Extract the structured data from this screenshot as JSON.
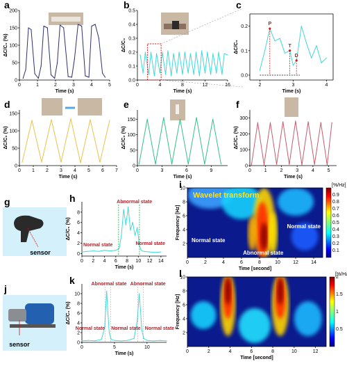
{
  "panels": {
    "a": {
      "letter": "a"
    },
    "b": {
      "letter": "b"
    },
    "c": {
      "letter": "c"
    },
    "d": {
      "letter": "d"
    },
    "e": {
      "letter": "e"
    },
    "f": {
      "letter": "f"
    },
    "g": {
      "letter": "g",
      "label": "sensor"
    },
    "h": {
      "letter": "h"
    },
    "i": {
      "letter": "i"
    },
    "j": {
      "letter": "j",
      "label": "sensor"
    },
    "k": {
      "letter": "k"
    },
    "l": {
      "letter": "l"
    }
  },
  "colors": {
    "a": "#2c2f6e",
    "cyan": "#3fd8d8",
    "d": "#e8c24a",
    "e": "#2fc08a",
    "f": "#c85a6a",
    "red_dash": "#d01818",
    "green_dash": "#22a844",
    "annotation_red": "#b0202a",
    "g_bg": "#d4f0fb",
    "j_bg": "#d4f0fb"
  },
  "chart_data": [
    {
      "id": "a",
      "type": "line",
      "title": "",
      "xlabel": "Time (s)",
      "ylabel": "ΔC/C₀ (%)",
      "xlim": [
        0,
        5
      ],
      "ylim": [
        0,
        200
      ],
      "xticks": [
        "0",
        "1",
        "2",
        "3",
        "4",
        "5"
      ],
      "yticks": [
        "0",
        "50",
        "100",
        "150",
        "200"
      ],
      "series": [
        {
          "x": [
            0.2,
            0.35,
            0.5,
            0.65,
            0.85,
            1.05,
            1.2,
            1.35,
            1.55,
            1.75,
            1.95,
            2.1,
            2.25,
            2.45,
            2.7,
            2.9,
            3.05,
            3.25,
            3.45,
            3.65,
            3.85,
            4.0,
            4.2,
            4.4,
            4.6,
            4.75
          ],
          "y": [
            5,
            30,
            150,
            145,
            18,
            5,
            40,
            155,
            150,
            15,
            5,
            50,
            158,
            150,
            10,
            8,
            60,
            160,
            155,
            12,
            8,
            155,
            160,
            120,
            20,
            8
          ]
        }
      ]
    },
    {
      "id": "b",
      "type": "line",
      "title": "",
      "xlabel": "Time (s)",
      "ylabel": "ΔC/C₀",
      "xlim": [
        0,
        16
      ],
      "ylim": [
        0,
        0.5
      ],
      "xticks": [
        "0",
        "4",
        "8",
        "12",
        "16"
      ],
      "yticks": [
        "0.0",
        "0.1",
        "0.2",
        "0.3",
        "0.4",
        "0.5"
      ],
      "series": [
        {
          "x": [
            0.5,
            1.0,
            1.4,
            2.0,
            2.4,
            3.0,
            3.4,
            4.0,
            4.4,
            5.0,
            5.4,
            6.0,
            6.4,
            7.0,
            7.4,
            8.0,
            8.4,
            9.0,
            9.4,
            10.0,
            10.4,
            11.0,
            11.4,
            12.0,
            12.4,
            13.0,
            13.4,
            14.0,
            14.4,
            15.0,
            15.4,
            16.0
          ],
          "y": [
            0.18,
            0.05,
            0.2,
            0.04,
            0.2,
            0.03,
            0.19,
            0.05,
            0.2,
            0.04,
            0.21,
            0.03,
            0.19,
            0.05,
            0.2,
            0.04,
            0.2,
            0.05,
            0.19,
            0.04,
            0.2,
            0.03,
            0.21,
            0.05,
            0.2,
            0.04,
            0.19,
            0.05,
            0.2,
            0.04,
            0.19,
            0.18
          ]
        }
      ]
    },
    {
      "id": "c",
      "type": "line",
      "title": "",
      "xlabel": "Time (s)",
      "ylabel": "ΔC/C₀",
      "xlim": [
        1.7,
        4.2
      ],
      "ylim": [
        -0.02,
        0.25
      ],
      "xticks": [
        "2",
        "3",
        "4"
      ],
      "yticks": [
        "0.0",
        "0.1",
        "0.2"
      ],
      "annotations": [
        "P",
        "T",
        "D"
      ],
      "series": [
        {
          "x": [
            2.0,
            2.15,
            2.3,
            2.45,
            2.6,
            2.75,
            2.9,
            3.0,
            3.1,
            3.25,
            3.4,
            3.55,
            3.7,
            3.85,
            4.0
          ],
          "y": [
            0.02,
            0.1,
            0.19,
            0.14,
            0.15,
            0.09,
            0.1,
            0.04,
            0.06,
            0.2,
            0.13,
            0.07,
            0.12,
            0.05,
            0.07
          ]
        }
      ]
    },
    {
      "id": "d",
      "type": "line",
      "title": "",
      "xlabel": "Time (s)",
      "ylabel": "ΔC/C₀ (%)",
      "xlim": [
        0,
        7
      ],
      "ylim": [
        0,
        160
      ],
      "xticks": [
        "0",
        "1",
        "2",
        "3",
        "4",
        "5",
        "6",
        "7"
      ],
      "yticks": [
        "0",
        "50",
        "100",
        "150"
      ],
      "series": [
        {
          "x": [
            0.2,
            0.9,
            1.6,
            2.3,
            3.0,
            3.7,
            4.4,
            5.1,
            5.8,
            6.5
          ],
          "y": [
            10,
            130,
            10,
            132,
            10,
            135,
            8,
            132,
            10,
            130
          ]
        }
      ]
    },
    {
      "id": "e",
      "type": "line",
      "title": "",
      "xlabel": "Time (s)",
      "ylabel": "ΔC/C₀ (%)",
      "xlim": [
        0,
        11
      ],
      "ylim": [
        0,
        180
      ],
      "xticks": [
        "0",
        "3",
        "6",
        "9"
      ],
      "yticks": [
        "0",
        "50",
        "100",
        "150"
      ],
      "series": [
        {
          "x": [
            0.2,
            1.2,
            2.2,
            3.2,
            4.2,
            5.2,
            6.2,
            7.2,
            8.2,
            9.2,
            10.2
          ],
          "y": [
            5,
            150,
            5,
            155,
            5,
            150,
            5,
            155,
            5,
            150,
            5
          ]
        }
      ]
    },
    {
      "id": "f",
      "type": "line",
      "title": "",
      "xlabel": "Time (s)",
      "ylabel": "ΔC/C₀ (%)",
      "xlim": [
        0,
        5.5
      ],
      "ylim": [
        0,
        350
      ],
      "xticks": [
        "0",
        "1",
        "2",
        "3",
        "4",
        "5"
      ],
      "yticks": [
        "0",
        "100",
        "200",
        "300"
      ],
      "series": [
        {
          "x": [
            0.1,
            0.5,
            0.9,
            1.3,
            1.7,
            2.1,
            2.5,
            2.9,
            3.3,
            3.7,
            4.1,
            4.5,
            4.9,
            5.2
          ],
          "y": [
            5,
            270,
            5,
            270,
            8,
            275,
            8,
            280,
            5,
            275,
            8,
            270,
            5,
            270
          ]
        }
      ]
    },
    {
      "id": "h",
      "type": "line",
      "title": "",
      "xlabel": "Time (s)",
      "ylabel": "ΔC/C₀ (%)",
      "xlim": [
        0,
        15
      ],
      "ylim": [
        -0.5,
        10
      ],
      "xticks": [
        "0",
        "2",
        "4",
        "6",
        "8",
        "10",
        "12",
        "14"
      ],
      "yticks": [
        "0",
        "2",
        "4",
        "6",
        "8"
      ],
      "annotations": [
        "Abnormal state",
        "Normal state",
        "Normal state"
      ],
      "series": [
        {
          "x": [
            0,
            1,
            2,
            3,
            4,
            5,
            6,
            6.6,
            7.0,
            7.4,
            7.8,
            8.2,
            8.6,
            9.0,
            9.4,
            9.8,
            10.2,
            10.5,
            11,
            12,
            13,
            14
          ],
          "y": [
            0.3,
            0.4,
            0.5,
            0.4,
            0.6,
            0.5,
            0.6,
            1.0,
            3.5,
            8.5,
            5.5,
            9.0,
            4.5,
            6.0,
            3.5,
            5.0,
            1.5,
            0.6,
            0.4,
            0.3,
            0.2,
            0.3
          ]
        }
      ]
    },
    {
      "id": "i",
      "type": "heatmap",
      "title": "Wavelet transform",
      "xlabel": "Time [second]",
      "ylabel": "Frequency [Hz]",
      "xlim": [
        0,
        15
      ],
      "ylim": [
        0,
        10
      ],
      "xticks": [
        "0",
        "2",
        "4",
        "6",
        "8",
        "10",
        "12",
        "14"
      ],
      "yticks": [
        "2",
        "4",
        "6",
        "8",
        "10"
      ],
      "colorbar_label": "[%/Hz]",
      "colorbar_ticks": [
        "0.1",
        "0.2",
        "0.3",
        "0.4",
        "0.5",
        "0.6",
        "0.7",
        "0.8",
        "0.9"
      ],
      "annotations": [
        "Normal state",
        "Abnormal state",
        "Normal state"
      ]
    },
    {
      "id": "k",
      "type": "line",
      "title": "",
      "xlabel": "Time (s)",
      "ylabel": "ΔC/C₀ (%)",
      "xlim": [
        0,
        13
      ],
      "ylim": [
        0,
        12
      ],
      "xticks": [
        "0",
        "5",
        "10"
      ],
      "yticks": [
        "0",
        "2",
        "4",
        "6",
        "8",
        "10"
      ],
      "annotations": [
        "Abnormal state",
        "Abnormal state",
        "Normal state",
        "Normal state",
        "Normal state"
      ],
      "series": [
        {
          "x": [
            0,
            1,
            2,
            3,
            3.5,
            3.8,
            4.0,
            4.2,
            4.5,
            5,
            6,
            7,
            8,
            8.5,
            8.8,
            9.0,
            9.2,
            9.5,
            10,
            11,
            12,
            13
          ],
          "y": [
            0.3,
            0.4,
            0.3,
            0.6,
            3.0,
            10.5,
            6.0,
            2.0,
            0.6,
            0.4,
            0.3,
            0.4,
            0.8,
            4.5,
            10.0,
            6.5,
            2.5,
            0.8,
            0.4,
            0.3,
            0.4,
            0.3
          ]
        }
      ]
    },
    {
      "id": "l",
      "type": "heatmap",
      "title": "",
      "xlabel": "Time [second]",
      "ylabel": "Frequency [Hz]",
      "xlim": [
        0,
        13
      ],
      "ylim": [
        0,
        10
      ],
      "xticks": [
        "0",
        "2",
        "4",
        "6",
        "8",
        "10",
        "12"
      ],
      "yticks": [
        "2",
        "4",
        "6",
        "8",
        "10"
      ],
      "colorbar_label": "[%/Hz]",
      "colorbar_ticks": [
        "0.5",
        "1",
        "1.5",
        "2"
      ]
    }
  ]
}
